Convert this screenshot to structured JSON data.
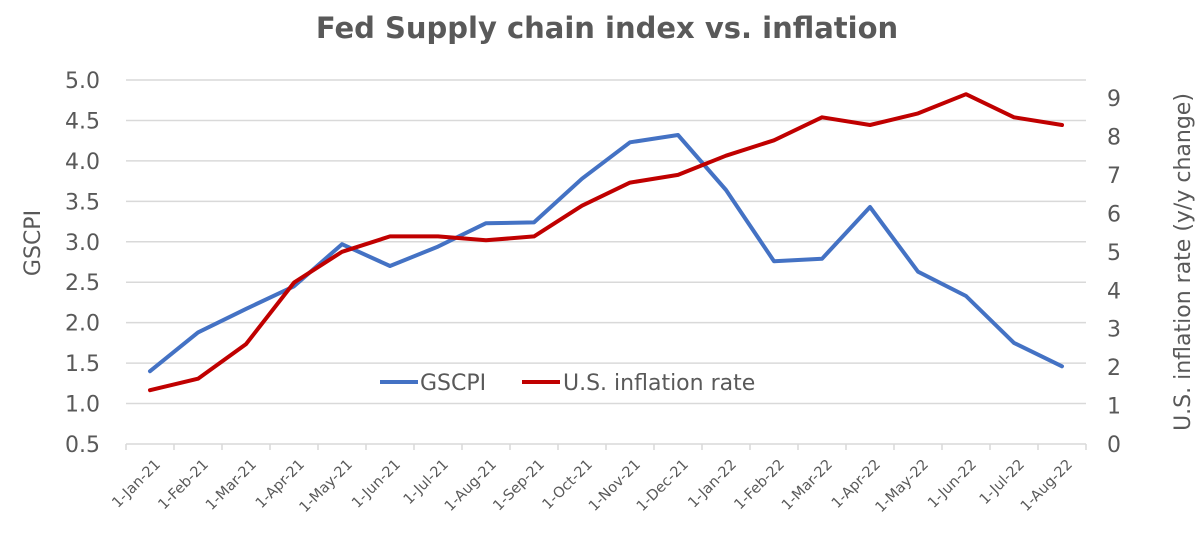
{
  "chart_data": {
    "type": "line",
    "title": "Fed Supply chain index vs. inflation",
    "xlabel": "",
    "ylabel": "GSCPI",
    "y2label": "U.S. inflation rate (y/y change)",
    "categories": [
      "1-Jan-21",
      "1-Feb-21",
      "1-Mar-21",
      "1-Apr-21",
      "1-May-21",
      "1-Jun-21",
      "1-Jul-21",
      "1-Aug-21",
      "1-Sep-21",
      "1-Oct-21",
      "1-Nov-21",
      "1-Dec-21",
      "1-Jan-22",
      "1-Feb-22",
      "1-Mar-22",
      "1-Apr-22",
      "1-May-22",
      "1-Jun-22",
      "1-Jul-22",
      "1-Aug-22"
    ],
    "ylim": [
      0.5,
      5.0
    ],
    "yticks": [
      "0.5",
      "1.0",
      "1.5",
      "2.0",
      "2.5",
      "3.0",
      "3.5",
      "4.0",
      "4.5",
      "5.0"
    ],
    "y2lim": [
      0,
      9.47
    ],
    "y2ticks": [
      "0",
      "1",
      "2",
      "3",
      "4",
      "5",
      "6",
      "7",
      "8",
      "9"
    ],
    "grid": true,
    "legend_position": "center",
    "series": [
      {
        "name": "GSCPI",
        "axis": "left",
        "color": "#4472c4",
        "values": [
          1.4,
          1.88,
          2.17,
          2.45,
          2.97,
          2.7,
          2.94,
          3.23,
          3.24,
          3.78,
          4.23,
          4.32,
          3.64,
          2.76,
          2.79,
          3.43,
          2.63,
          2.33,
          1.75,
          1.46
        ]
      },
      {
        "name": "U.S. inflation rate",
        "axis": "right",
        "color": "#c00000",
        "values": [
          1.4,
          1.7,
          2.6,
          4.2,
          5.0,
          5.4,
          5.4,
          5.3,
          5.4,
          6.2,
          6.8,
          7.0,
          7.5,
          7.9,
          8.5,
          8.3,
          8.6,
          9.1,
          8.5,
          8.3
        ]
      }
    ]
  }
}
